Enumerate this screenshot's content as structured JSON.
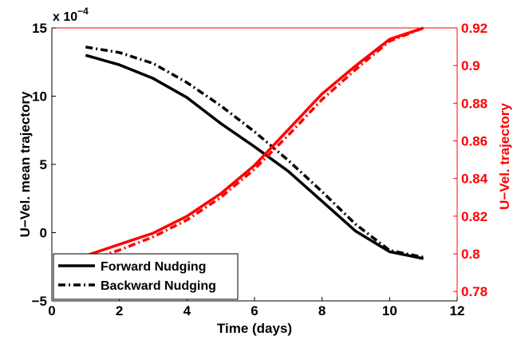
{
  "chart_data": {
    "type": "line",
    "xlabel": "Time (days)",
    "xlim": [
      0,
      12
    ],
    "xticks": [
      "0",
      "2",
      "4",
      "6",
      "8",
      "10",
      "12"
    ],
    "left_axis": {
      "label": "U−Vel. mean trajectory",
      "ylim": [
        -5,
        15
      ],
      "ticks": [
        "−5",
        "0",
        "5",
        "10",
        "15"
      ],
      "exponent_prefix": "x 10",
      "exponent": "−4",
      "color": "#000000"
    },
    "right_axis": {
      "label": "U−Vel. trajectory",
      "ylim": [
        0.775,
        0.92
      ],
      "ticks": [
        "0.78",
        "0.8",
        "0.82",
        "0.84",
        "0.86",
        "0.88",
        "0.9",
        "0.92"
      ],
      "color": "#ff0000"
    },
    "legend": {
      "placement": "bottom-left",
      "entries": [
        "Forward Nudging",
        "Backward Nudging"
      ]
    },
    "series": [
      {
        "name": "Forward Nudging",
        "axis": "left",
        "color": "#000000",
        "style": "solid",
        "x": [
          1,
          2,
          3,
          4,
          5,
          6,
          7,
          8,
          9,
          10,
          11
        ],
        "values": [
          13.0,
          12.3,
          11.3,
          9.9,
          8.0,
          6.3,
          4.5,
          2.3,
          0.1,
          -1.4,
          -1.9
        ]
      },
      {
        "name": "Backward Nudging",
        "axis": "left",
        "color": "#000000",
        "style": "dashdot",
        "x": [
          1,
          2,
          3,
          4,
          5,
          6,
          7,
          8,
          9,
          10,
          11
        ],
        "values": [
          13.6,
          13.2,
          12.4,
          11.0,
          9.3,
          7.4,
          5.3,
          3.0,
          0.6,
          -1.3,
          -1.8
        ]
      },
      {
        "name": "Forward Nudging",
        "axis": "right",
        "color": "#ff0000",
        "style": "solid",
        "x": [
          1,
          2,
          3,
          4,
          5,
          6,
          7,
          8,
          9,
          10,
          11
        ],
        "values": [
          0.799,
          0.805,
          0.811,
          0.82,
          0.832,
          0.847,
          0.866,
          0.885,
          0.9,
          0.914,
          0.92
        ]
      },
      {
        "name": "Backward Nudging",
        "axis": "right",
        "color": "#ff0000",
        "style": "dashdot",
        "x": [
          1,
          2,
          3,
          4,
          5,
          6,
          7,
          8,
          9,
          10,
          11
        ],
        "values": [
          0.796,
          0.802,
          0.809,
          0.818,
          0.83,
          0.845,
          0.863,
          0.882,
          0.898,
          0.913,
          0.92
        ]
      }
    ]
  }
}
